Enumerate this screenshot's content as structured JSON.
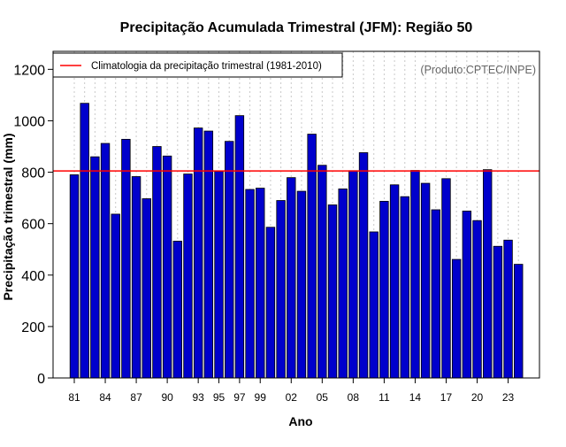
{
  "chart_data": {
    "type": "bar",
    "title": "Precipitação Acumulada Trimestral (JFM): Região 50",
    "xlabel": "Ano",
    "ylabel": "Precipitação trimestral (mm)",
    "ylim": [
      0,
      1270
    ],
    "yticks": [
      0,
      200,
      400,
      600,
      800,
      1000,
      1200
    ],
    "categories": [
      "1981",
      "1982",
      "1983",
      "1984",
      "1985",
      "1986",
      "1987",
      "1988",
      "1989",
      "1990",
      "1991",
      "1992",
      "1993",
      "1994",
      "1995",
      "1996",
      "1997",
      "1998",
      "1999",
      "2000",
      "2001",
      "2002",
      "2003",
      "2004",
      "2005",
      "2006",
      "2007",
      "2008",
      "2009",
      "2010",
      "2011",
      "2012",
      "2013",
      "2014",
      "2015",
      "2016",
      "2017",
      "2018",
      "2019",
      "2020",
      "2021",
      "2022",
      "2023",
      "2024"
    ],
    "xtick_labels": [
      "81",
      "84",
      "87",
      "90",
      "93",
      "95",
      "97",
      "99",
      "02",
      "05",
      "08",
      "11",
      "14",
      "17",
      "20",
      "23"
    ],
    "xtick_indices": [
      0,
      3,
      6,
      9,
      12,
      14,
      16,
      18,
      21,
      24,
      27,
      30,
      33,
      36,
      39,
      42
    ],
    "values": [
      790,
      1068,
      860,
      912,
      637,
      928,
      783,
      697,
      900,
      863,
      532,
      793,
      972,
      960,
      803,
      920,
      1020,
      733,
      738,
      586,
      690,
      779,
      726,
      948,
      827,
      673,
      735,
      806,
      876,
      568,
      687,
      751,
      705,
      807,
      757,
      654,
      775,
      461,
      649,
      612,
      810,
      512,
      536,
      442
    ],
    "climatology": 805,
    "legend": {
      "label": "Climatologia da precipitação trimestral (1981-2010)",
      "position": "top-left"
    },
    "source_note": "(Produto:CPTEC/INPE)",
    "colors": {
      "bar_fill": "#0000cc",
      "bar_stroke": "#000000",
      "climatology_line": "#ff0000",
      "grid": "#c8c8c8"
    }
  }
}
